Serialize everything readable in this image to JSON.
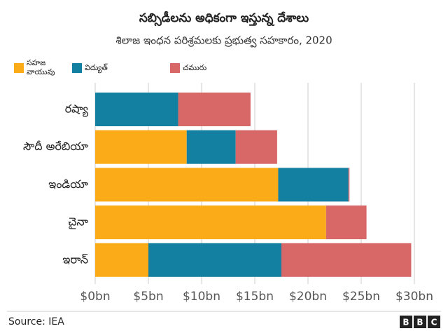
{
  "chart_data": {
    "type": "stacked-bar-horizontal",
    "title": "సబ్సిడీలను అధికంగా ఇస్తున్న దేశాలు",
    "subtitle": "శిలాజ ఇంధన పరిశ్రమలకు ప్రభుత్వ సహకారం, 2020",
    "categories": [
      "రష్యా",
      "సౌదీ అరేబియా",
      "ఇండియా",
      "చైనా",
      "ఇరాన్"
    ],
    "series": [
      {
        "name": "సహజ వాయువు",
        "color": "#fbab18",
        "values": [
          0,
          8.6,
          17.2,
          21.7,
          5.0
        ]
      },
      {
        "name": "విద్యుత్",
        "color": "#1380a1",
        "values": [
          7.8,
          4.6,
          6.6,
          0,
          12.5
        ]
      },
      {
        "name": "చమురు",
        "color": "#d86868",
        "values": [
          6.8,
          3.9,
          0.1,
          3.8,
          12.2
        ]
      }
    ],
    "xlim": [
      0,
      30
    ],
    "xticks": [
      {
        "value": 0,
        "label": "$0bn"
      },
      {
        "value": 5,
        "label": "$5bn"
      },
      {
        "value": 10,
        "label": "$10bn"
      },
      {
        "value": 15,
        "label": "$15bn"
      },
      {
        "value": 20,
        "label": "$20bn"
      },
      {
        "value": 25,
        "label": "$25bn"
      },
      {
        "value": 30,
        "label": "$30bn"
      }
    ],
    "grid": true,
    "source": "Source: IEA",
    "logo": [
      "B",
      "B",
      "C"
    ]
  }
}
